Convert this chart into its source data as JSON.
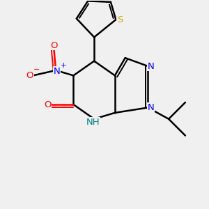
{
  "bg_color": "#f0f0f0",
  "bond_color": "#000000",
  "atom_colors": {
    "N": "#0000ff",
    "O": "#ff0000",
    "S": "#ccaa00",
    "H": "#008080",
    "C": "#000000"
  },
  "figsize": [
    3.0,
    3.0
  ],
  "dpi": 100,
  "xlim": [
    0,
    10
  ],
  "ylim": [
    0,
    10
  ]
}
